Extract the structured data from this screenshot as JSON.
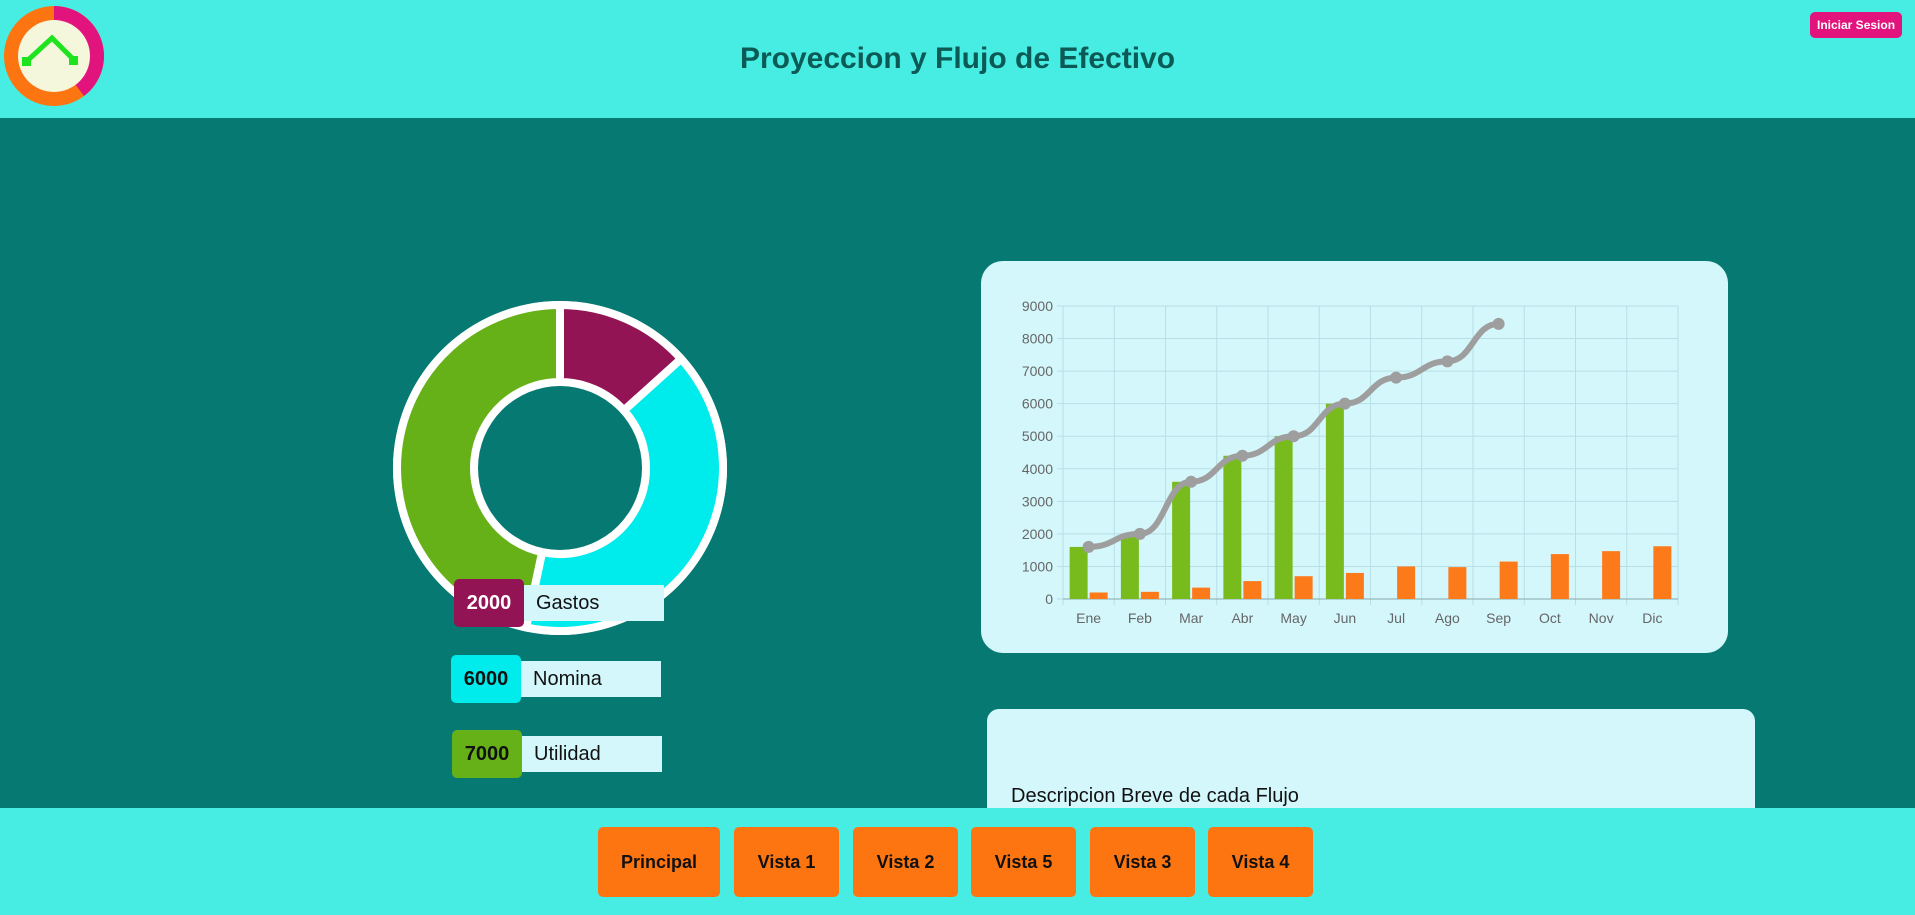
{
  "header": {
    "title": "Proyeccion y Flujo de Efectivo",
    "login_label": "Iniciar Sesion",
    "logo_icon": "chart-logo-icon"
  },
  "donut": {
    "slices": [
      {
        "label": "Gastos",
        "value": 2000,
        "color": "#931455"
      },
      {
        "label": "Nomina",
        "value": 6000,
        "color": "#00ebeb"
      },
      {
        "label": "Utilidad",
        "value": 7000,
        "color": "#66b117"
      }
    ]
  },
  "legend": [
    {
      "value": "2000",
      "label": "Gastos",
      "color": "#931455",
      "text_color": "#ffffff"
    },
    {
      "value": "6000",
      "label": "Nomina",
      "color": "#00ebeb",
      "text_color": "#111111"
    },
    {
      "value": "7000",
      "label": "Utilidad",
      "color": "#66b117",
      "text_color": "#111111"
    }
  ],
  "chart_data": {
    "type": "bar",
    "categories": [
      "Ene",
      "Feb",
      "Mar",
      "Abr",
      "May",
      "Jun",
      "Jul",
      "Ago",
      "Sep",
      "Oct",
      "Nov",
      "Dic"
    ],
    "series": [
      {
        "type": "bar",
        "color": "#78bb1c",
        "values": [
          1600,
          2000,
          3600,
          4400,
          5000,
          6000,
          null,
          null,
          null,
          null,
          null,
          null
        ]
      },
      {
        "type": "bar",
        "color": "#fd7a1b",
        "values": [
          200,
          220,
          350,
          550,
          700,
          800,
          1000,
          980,
          1150,
          1380,
          1470,
          1620
        ]
      },
      {
        "type": "line",
        "color": "#9e9e9e",
        "values": [
          1600,
          2000,
          3600,
          4400,
          5000,
          6000,
          6800,
          7300,
          8450,
          null,
          null,
          null
        ]
      }
    ],
    "ylim": [
      0,
      9000
    ],
    "yticks": [
      0,
      1000,
      2000,
      3000,
      4000,
      5000,
      6000,
      7000,
      8000,
      9000
    ],
    "grid": true
  },
  "description": {
    "text": "Descripcion Breve de cada Flujo"
  },
  "footer": {
    "buttons": [
      "Principal",
      "Vista 1",
      "Vista 2",
      "Vista 5",
      "Vista 3",
      "Vista 4"
    ]
  }
}
